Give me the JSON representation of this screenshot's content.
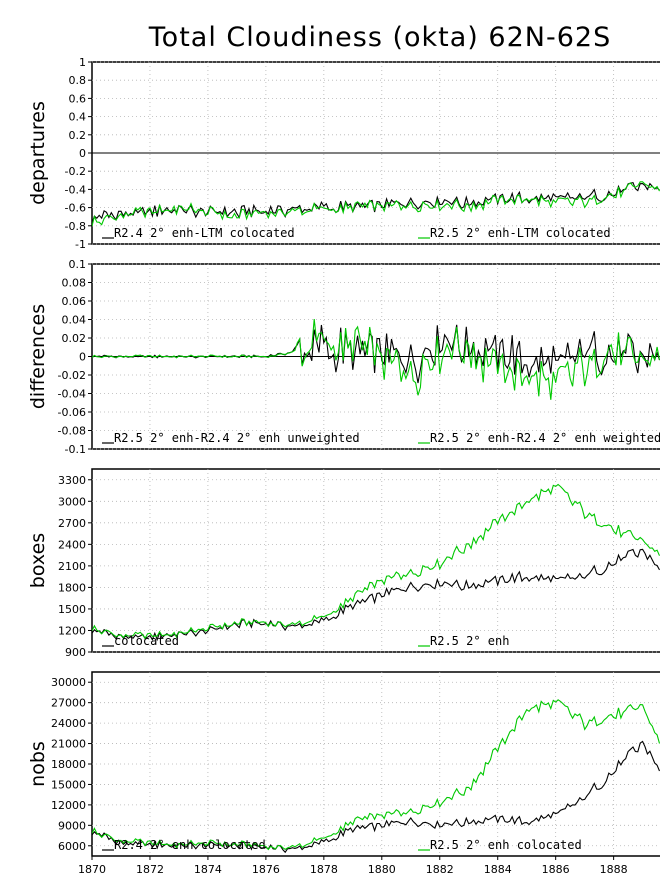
{
  "title": "Total Cloudiness (okta) 62N-62S",
  "colors": {
    "black": "#000000",
    "green": "#00c800",
    "grid": "#b4b4b4"
  },
  "x_axis": {
    "xlim": [
      1870,
      1889.6
    ],
    "ticks": [
      1870,
      1872,
      1874,
      1876,
      1878,
      1880,
      1882,
      1884,
      1886,
      1888
    ],
    "tick_labels": [
      "1870",
      "1872",
      "1874",
      "1876",
      "1878",
      "1880",
      "1882",
      "1884",
      "1886",
      "1888"
    ]
  },
  "chart_data": [
    {
      "type": "line",
      "ylabel": "departures",
      "ylim": [
        -1,
        1
      ],
      "yticks": [
        -1,
        -0.8,
        -0.6,
        -0.4,
        -0.2,
        0,
        0.2,
        0.4,
        0.6,
        0.8,
        1
      ],
      "ytick_labels": [
        "-1",
        "-0.8",
        "-0.6",
        "-0.4",
        "-0.2",
        "0",
        "0.2",
        "0.4",
        "0.6",
        "0.8",
        "1"
      ],
      "zero_line": true,
      "grid": true,
      "legend_position": "bottom",
      "x": [
        1870,
        1871,
        1872,
        1873,
        1874,
        1875,
        1876,
        1877,
        1878,
        1879,
        1880,
        1881,
        1882,
        1883,
        1884,
        1885,
        1886,
        1887,
        1888,
        1889,
        1889.6
      ],
      "series": [
        {
          "name": "R2.4 2° enh-LTM colocated",
          "color": "#000000",
          "values": [
            -0.72,
            -0.66,
            -0.64,
            -0.62,
            -0.64,
            -0.66,
            -0.64,
            -0.62,
            -0.6,
            -0.59,
            -0.57,
            -0.56,
            -0.54,
            -0.55,
            -0.5,
            -0.5,
            -0.5,
            -0.49,
            -0.44,
            -0.36,
            -0.4
          ]
        },
        {
          "name": "R2.5 2° enh-LTM colocated",
          "color": "#00c800",
          "values": [
            -0.76,
            -0.68,
            -0.66,
            -0.6,
            -0.66,
            -0.7,
            -0.64,
            -0.64,
            -0.62,
            -0.6,
            -0.58,
            -0.58,
            -0.56,
            -0.58,
            -0.53,
            -0.5,
            -0.55,
            -0.53,
            -0.47,
            -0.33,
            -0.41
          ]
        }
      ]
    },
    {
      "type": "line",
      "ylabel": "differences",
      "ylim": [
        -0.1,
        0.1
      ],
      "yticks": [
        -0.1,
        -0.08,
        -0.06,
        -0.04,
        -0.02,
        0,
        0.02,
        0.04,
        0.06,
        0.08,
        0.1
      ],
      "ytick_labels": [
        "-0.1",
        "-0.08",
        "-0.06",
        "-0.04",
        "-0.02",
        "0",
        "0.02",
        "0.04",
        "0.06",
        "0.08",
        "0.1"
      ],
      "zero_line": true,
      "grid": true,
      "legend_position": "bottom",
      "x": [
        1870,
        1871,
        1872,
        1873,
        1874,
        1875,
        1876,
        1877,
        1878,
        1879,
        1880,
        1881,
        1882,
        1883,
        1884,
        1885,
        1886,
        1887,
        1888,
        1889,
        1889.6
      ],
      "series": [
        {
          "name": "R2.5 2° enh-R2.4 2° enh unweighted",
          "color": "#000000",
          "values": [
            0,
            0,
            0,
            0,
            0,
            0,
            0,
            0.005,
            0.01,
            0.005,
            0.005,
            -0.01,
            0.015,
            0.01,
            0.005,
            -0.005,
            -0.01,
            0.005,
            0.005,
            -0.005,
            0
          ]
        },
        {
          "name": "R2.5 2° enh-R2.4 2° enh weighted",
          "color": "#00c800",
          "values": [
            0,
            0,
            0,
            0,
            0,
            0,
            0,
            0.005,
            0.015,
            0.01,
            0,
            -0.02,
            0.01,
            0.01,
            -0.015,
            -0.02,
            -0.03,
            -0.01,
            0.005,
            -0.005,
            0
          ]
        }
      ]
    },
    {
      "type": "line",
      "ylabel": "boxes",
      "ylim": [
        900,
        3450
      ],
      "yticks": [
        900,
        1200,
        1500,
        1800,
        2100,
        2400,
        2700,
        3000,
        3300
      ],
      "ytick_labels": [
        "900",
        "1200",
        "1500",
        "1800",
        "2100",
        "2400",
        "2700",
        "3000",
        "3300"
      ],
      "zero_line": false,
      "grid": true,
      "legend_position": "bottom",
      "x": [
        1870,
        1871,
        1872,
        1873,
        1874,
        1875,
        1876,
        1877,
        1878,
        1879,
        1880,
        1881,
        1882,
        1883,
        1884,
        1885,
        1886,
        1887,
        1888,
        1889,
        1889.6
      ],
      "series": [
        {
          "name": "colocated",
          "color": "#000000",
          "values": [
            1200,
            1120,
            1110,
            1150,
            1200,
            1280,
            1300,
            1250,
            1330,
            1550,
            1700,
            1800,
            1850,
            1820,
            1900,
            1950,
            1900,
            1950,
            2150,
            2300,
            2050
          ]
        },
        {
          "name": "R2.5 2° enh",
          "color": "#00c800",
          "values": [
            1230,
            1130,
            1120,
            1160,
            1220,
            1300,
            1320,
            1280,
            1380,
            1650,
            1900,
            2000,
            2150,
            2400,
            2700,
            3000,
            3200,
            2850,
            2600,
            2450,
            2250
          ]
        }
      ]
    },
    {
      "type": "line",
      "ylabel": "nobs",
      "ylim": [
        4500,
        31500
      ],
      "yticks": [
        6000,
        9000,
        12000,
        15000,
        18000,
        21000,
        24000,
        27000,
        30000
      ],
      "ytick_labels": [
        "6000",
        "9000",
        "12000",
        "15000",
        "18000",
        "21000",
        "24000",
        "27000",
        "30000"
      ],
      "zero_line": false,
      "grid": true,
      "legend_position": "bottom",
      "x": [
        1870,
        1871,
        1872,
        1873,
        1874,
        1875,
        1876,
        1877,
        1878,
        1879,
        1880,
        1881,
        1882,
        1883,
        1884,
        1885,
        1886,
        1887,
        1888,
        1889,
        1889.6
      ],
      "series": [
        {
          "name": "R2.4 2° enh colocated",
          "color": "#000000",
          "values": [
            8000,
            6500,
            6200,
            6000,
            6200,
            6000,
            5800,
            5500,
            6500,
            8500,
            9000,
            9500,
            9000,
            9500,
            10000,
            9500,
            10500,
            13000,
            17000,
            21000,
            17000
          ]
        },
        {
          "name": "R2.5 2° enh colocated",
          "color": "#00c800",
          "values": [
            8200,
            6700,
            6300,
            6200,
            6300,
            6200,
            6000,
            5800,
            7000,
            9500,
            10500,
            11000,
            12500,
            14500,
            20000,
            26000,
            27000,
            24000,
            25000,
            26500,
            21000
          ]
        }
      ]
    }
  ]
}
